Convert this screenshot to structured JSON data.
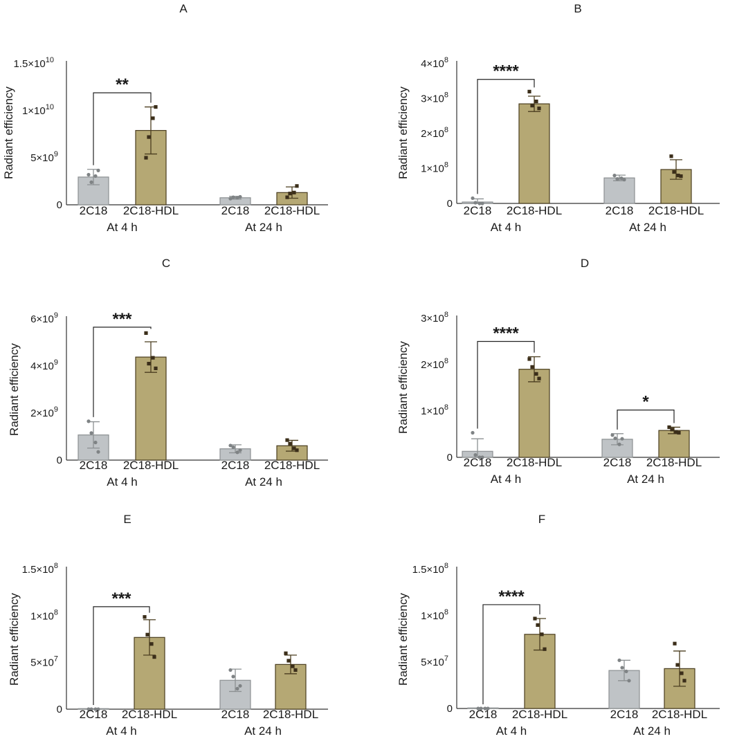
{
  "colors": {
    "gray_fill": "#bfc3c6",
    "gray_edge": "#8c9092",
    "gold_fill": "#b5a874",
    "gold_edge": "#4a3d1f",
    "axis": "#333333",
    "text": "#1a1a1a"
  },
  "chart_data": [
    {
      "panel_label": "A",
      "type": "bar",
      "ylabel": "Radiant efficiency",
      "ylim": [
        0,
        15000000000
      ],
      "y_ticks": [
        {
          "value": 0,
          "base": "0",
          "exp": ""
        },
        {
          "value": 5000000000,
          "base": "5×10",
          "exp": "9"
        },
        {
          "value": 10000000000,
          "base": "1×10",
          "exp": "10"
        },
        {
          "value": 15000000000,
          "base": "1.5×10",
          "exp": "10"
        }
      ],
      "groups": [
        {
          "label": "At 4 h",
          "bars": [
            {
              "label": "2C18",
              "series": "2C18",
              "mean": 2950000000,
              "sd": 820000000,
              "points": [
                3200000000,
                2400000000,
                3050000000,
                3650000000
              ]
            },
            {
              "label": "2C18-HDL",
              "series": "2C18-HDL",
              "mean": 7900000000,
              "sd": 2500000000,
              "points": [
                5000000000,
                7200000000,
                9200000000,
                10400000000
              ]
            }
          ]
        },
        {
          "label": "At 24 h",
          "bars": [
            {
              "label": "2C18",
              "series": "2C18",
              "mean": 750000000,
              "sd": 150000000,
              "points": [
                650000000,
                800000000,
                750000000,
                850000000
              ]
            },
            {
              "label": "2C18-HDL",
              "series": "2C18-HDL",
              "mean": 1300000000,
              "sd": 600000000,
              "points": [
                800000000,
                1200000000,
                1300000000,
                2000000000
              ]
            }
          ]
        }
      ],
      "significance": [
        {
          "from": [
            0,
            0
          ],
          "to": [
            0,
            1
          ],
          "label": "**",
          "y": 11900000000
        }
      ]
    },
    {
      "panel_label": "B",
      "type": "bar",
      "ylabel": "Radiant efficiency",
      "ylim": [
        0,
        400000000
      ],
      "y_ticks": [
        {
          "value": 0,
          "base": "0",
          "exp": ""
        },
        {
          "value": 100000000,
          "base": "1×10",
          "exp": "8"
        },
        {
          "value": 200000000,
          "base": "2×10",
          "exp": "8"
        },
        {
          "value": 300000000,
          "base": "3×10",
          "exp": "8"
        },
        {
          "value": 400000000,
          "base": "4×10",
          "exp": "8"
        }
      ],
      "groups": [
        {
          "label": "At 4 h",
          "bars": [
            {
              "label": "2C18",
              "series": "2C18",
              "mean": 4000000,
              "sd": 9000000,
              "points": [
                15000000,
                2000000,
                0,
                0
              ]
            },
            {
              "label": "2C18-HDL",
              "series": "2C18-HDL",
              "mean": 285000000,
              "sd": 22000000,
              "points": [
                320000000,
                280000000,
                292000000,
                272000000
              ]
            }
          ]
        },
        {
          "label": "At 24 h",
          "bars": [
            {
              "label": "2C18",
              "series": "2C18",
              "mean": 73000000,
              "sd": 8000000,
              "points": [
                80000000,
                70000000,
                72000000,
                68000000
              ]
            },
            {
              "label": "2C18-HDL",
              "series": "2C18-HDL",
              "mean": 97000000,
              "sd": 28000000,
              "points": [
                135000000,
                90000000,
                80000000,
                78000000
              ]
            }
          ]
        }
      ],
      "significance": [
        {
          "from": [
            0,
            0
          ],
          "to": [
            0,
            1
          ],
          "label": "****",
          "y": 355000000
        }
      ]
    },
    {
      "panel_label": "C",
      "type": "bar",
      "ylabel": "Radiant efficiency",
      "ylim": [
        0,
        6000000000
      ],
      "y_ticks": [
        {
          "value": 0,
          "base": "0",
          "exp": ""
        },
        {
          "value": 2000000000,
          "base": "2×10",
          "exp": "9"
        },
        {
          "value": 4000000000,
          "base": "4×10",
          "exp": "9"
        },
        {
          "value": 6000000000,
          "base": "6×10",
          "exp": "9"
        }
      ],
      "groups": [
        {
          "label": "At 4 h",
          "bars": [
            {
              "label": "2C18",
              "series": "2C18",
              "mean": 1070000000,
              "sd": 560000000,
              "points": [
                1650000000,
                1150000000,
                750000000,
                350000000
              ]
            },
            {
              "label": "2C18-HDL",
              "series": "2C18-HDL",
              "mean": 4380000000,
              "sd": 650000000,
              "points": [
                5400000000,
                4100000000,
                4350000000,
                3900000000
              ]
            }
          ]
        },
        {
          "label": "At 24 h",
          "bars": [
            {
              "label": "2C18",
              "series": "2C18",
              "mean": 480000000,
              "sd": 170000000,
              "points": [
                620000000,
                550000000,
                330000000,
                420000000
              ]
            },
            {
              "label": "2C18-HDL",
              "series": "2C18-HDL",
              "mean": 610000000,
              "sd": 230000000,
              "points": [
                850000000,
                700000000,
                500000000,
                420000000
              ]
            }
          ]
        }
      ],
      "significance": [
        {
          "from": [
            0,
            0
          ],
          "to": [
            0,
            1
          ],
          "label": "***",
          "y": 5650000000
        }
      ]
    },
    {
      "panel_label": "D",
      "type": "bar",
      "ylabel": "Radiant efficiency",
      "ylim": [
        0,
        300000000
      ],
      "y_ticks": [
        {
          "value": 0,
          "base": "0",
          "exp": ""
        },
        {
          "value": 100000000,
          "base": "1×10",
          "exp": "8"
        },
        {
          "value": 200000000,
          "base": "2×10",
          "exp": "8"
        },
        {
          "value": 300000000,
          "base": "3×10",
          "exp": "8"
        }
      ],
      "groups": [
        {
          "label": "At 4 h",
          "bars": [
            {
              "label": "2C18",
              "series": "2C18",
              "mean": 13000000,
              "sd": 27000000,
              "points": [
                53000000,
                5000000,
                0,
                0
              ]
            },
            {
              "label": "2C18-HDL",
              "series": "2C18-HDL",
              "mean": 190000000,
              "sd": 27000000,
              "points": [
                212000000,
                195000000,
                180000000,
                170000000
              ]
            }
          ]
        },
        {
          "label": "At 24 h",
          "bars": [
            {
              "label": "2C18",
              "series": "2C18",
              "mean": 39000000,
              "sd": 12000000,
              "points": [
                48000000,
                41000000,
                28000000,
                40000000
              ]
            },
            {
              "label": "2C18-HDL",
              "series": "2C18-HDL",
              "mean": 58000000,
              "sd": 7000000,
              "points": [
                65000000,
                60000000,
                55000000,
                53000000
              ]
            }
          ]
        }
      ],
      "significance": [
        {
          "from": [
            0,
            0
          ],
          "to": [
            0,
            1
          ],
          "label": "****",
          "y": 250000000
        },
        {
          "from": [
            1,
            0
          ],
          "to": [
            1,
            1
          ],
          "label": "*",
          "y": 102000000
        }
      ]
    },
    {
      "panel_label": "E",
      "type": "bar",
      "ylabel": "Radiant efficiency",
      "ylim": [
        0,
        150000000
      ],
      "y_ticks": [
        {
          "value": 0,
          "base": "0",
          "exp": ""
        },
        {
          "value": 50000000,
          "base": "5×10",
          "exp": "7"
        },
        {
          "value": 100000000,
          "base": "1×10",
          "exp": "8"
        },
        {
          "value": 150000000,
          "base": "1.5×10",
          "exp": "8"
        }
      ],
      "groups": [
        {
          "label": "At 4 h",
          "bars": [
            {
              "label": "2C18",
              "series": "2C18",
              "mean": 0,
              "sd": 0,
              "points": [
                0,
                0,
                0,
                0
              ]
            },
            {
              "label": "2C18-HDL",
              "series": "2C18-HDL",
              "mean": 77000000,
              "sd": 19000000,
              "points": [
                99000000,
                80000000,
                70000000,
                56000000
              ]
            }
          ]
        },
        {
          "label": "At 24 h",
          "bars": [
            {
              "label": "2C18",
              "series": "2C18",
              "mean": 31000000,
              "sd": 12000000,
              "points": [
                42000000,
                35000000,
                22000000,
                25000000
              ]
            },
            {
              "label": "2C18-HDL",
              "series": "2C18-HDL",
              "mean": 48000000,
              "sd": 10000000,
              "points": [
                60000000,
                52000000,
                46000000,
                42000000
              ]
            }
          ]
        }
      ],
      "significance": [
        {
          "from": [
            0,
            0
          ],
          "to": [
            0,
            1
          ],
          "label": "***",
          "y": 110000000
        }
      ]
    },
    {
      "panel_label": "F",
      "type": "bar",
      "ylabel": "Radiant efficiency",
      "ylim": [
        0,
        150000000
      ],
      "y_ticks": [
        {
          "value": 0,
          "base": "0",
          "exp": ""
        },
        {
          "value": 50000000,
          "base": "5×10",
          "exp": "7"
        },
        {
          "value": 100000000,
          "base": "1×10",
          "exp": "8"
        },
        {
          "value": 150000000,
          "base": "1.5×10",
          "exp": "8"
        }
      ],
      "groups": [
        {
          "label": "At 4 h",
          "bars": [
            {
              "label": "2C18",
              "series": "2C18",
              "mean": 0,
              "sd": 0,
              "points": [
                0,
                0,
                0,
                0
              ]
            },
            {
              "label": "2C18-HDL",
              "series": "2C18-HDL",
              "mean": 80000000,
              "sd": 17000000,
              "points": [
                97000000,
                90000000,
                80000000,
                64000000
              ]
            }
          ]
        },
        {
          "label": "At 24 h",
          "bars": [
            {
              "label": "2C18",
              "series": "2C18",
              "mean": 41000000,
              "sd": 11000000,
              "points": [
                52000000,
                44000000,
                40000000,
                30000000
              ]
            },
            {
              "label": "2C18-HDL",
              "series": "2C18-HDL",
              "mean": 43000000,
              "sd": 19000000,
              "points": [
                70000000,
                47000000,
                38000000,
                30000000
              ]
            }
          ]
        }
      ],
      "significance": [
        {
          "from": [
            0,
            0
          ],
          "to": [
            0,
            1
          ],
          "label": "****",
          "y": 112000000
        }
      ]
    }
  ]
}
